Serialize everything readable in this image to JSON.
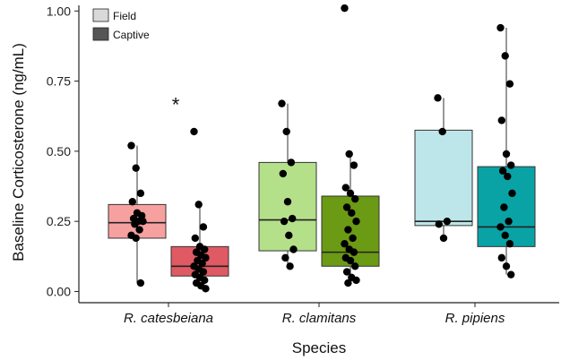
{
  "chart_data": {
    "type": "boxplot",
    "xlabel": "Species",
    "ylabel": "Baseline Corticosterone (ng/mL)",
    "ylim": [
      -0.04,
      1.02
    ],
    "yticks": [
      "0.00",
      "0.25",
      "0.50",
      "0.75",
      "1.00"
    ],
    "categories": [
      "R. catesbeiana",
      "R. clamitans",
      "R. pipiens"
    ],
    "legend": {
      "position": "top-left",
      "entries": [
        {
          "name": "Field",
          "color": "#d9d9d9"
        },
        {
          "name": "Captive",
          "color": "#555555"
        }
      ]
    },
    "annotations": [
      {
        "text": "*",
        "category": "R. catesbeiana",
        "y": 0.68
      }
    ],
    "groups": [
      {
        "category": "R. catesbeiana",
        "condition": "Field",
        "color": "#f7a0a0",
        "box": {
          "min": 0.03,
          "q1": 0.19,
          "median": 0.245,
          "q3": 0.31,
          "max": 0.52
        },
        "points": [
          0.52,
          0.44,
          0.35,
          0.32,
          0.28,
          0.27,
          0.26,
          0.25,
          0.25,
          0.24,
          0.22,
          0.2,
          0.19,
          0.03
        ]
      },
      {
        "category": "R. catesbeiana",
        "condition": "Captive",
        "color": "#e05a63",
        "box": {
          "min": 0.01,
          "q1": 0.055,
          "median": 0.09,
          "q3": 0.16,
          "max": 0.31
        },
        "points": [
          0.57,
          0.31,
          0.23,
          0.19,
          0.16,
          0.15,
          0.14,
          0.13,
          0.12,
          0.11,
          0.1,
          0.09,
          0.08,
          0.07,
          0.06,
          0.05,
          0.04,
          0.03,
          0.02,
          0.01
        ]
      },
      {
        "category": "R. clamitans",
        "condition": "Field",
        "color": "#b5e08a",
        "box": {
          "min": 0.09,
          "q1": 0.145,
          "median": 0.255,
          "q3": 0.46,
          "max": 0.67
        },
        "points": [
          0.67,
          0.57,
          0.46,
          0.42,
          0.32,
          0.26,
          0.25,
          0.2,
          0.15,
          0.12,
          0.09
        ]
      },
      {
        "category": "R. clamitans",
        "condition": "Captive",
        "color": "#6b9a14",
        "box": {
          "min": 0.03,
          "q1": 0.09,
          "median": 0.14,
          "q3": 0.34,
          "max": 0.49
        },
        "points": [
          1.01,
          0.49,
          0.45,
          0.37,
          0.35,
          0.33,
          0.3,
          0.28,
          0.25,
          0.22,
          0.19,
          0.17,
          0.15,
          0.14,
          0.12,
          0.11,
          0.09,
          0.07,
          0.05,
          0.04,
          0.03
        ]
      },
      {
        "category": "R. pipiens",
        "condition": "Field",
        "color": "#bde6ea",
        "box": {
          "min": 0.19,
          "q1": 0.235,
          "median": 0.25,
          "q3": 0.575,
          "max": 0.69
        },
        "points": [
          0.69,
          0.57,
          0.25,
          0.24,
          0.19
        ]
      },
      {
        "category": "R. pipiens",
        "condition": "Captive",
        "color": "#0aa3a5",
        "box": {
          "min": 0.06,
          "q1": 0.16,
          "median": 0.23,
          "q3": 0.445,
          "max": 0.94
        },
        "points": [
          0.94,
          0.84,
          0.74,
          0.61,
          0.49,
          0.45,
          0.43,
          0.41,
          0.35,
          0.3,
          0.25,
          0.23,
          0.2,
          0.17,
          0.12,
          0.09,
          0.06
        ]
      }
    ]
  }
}
